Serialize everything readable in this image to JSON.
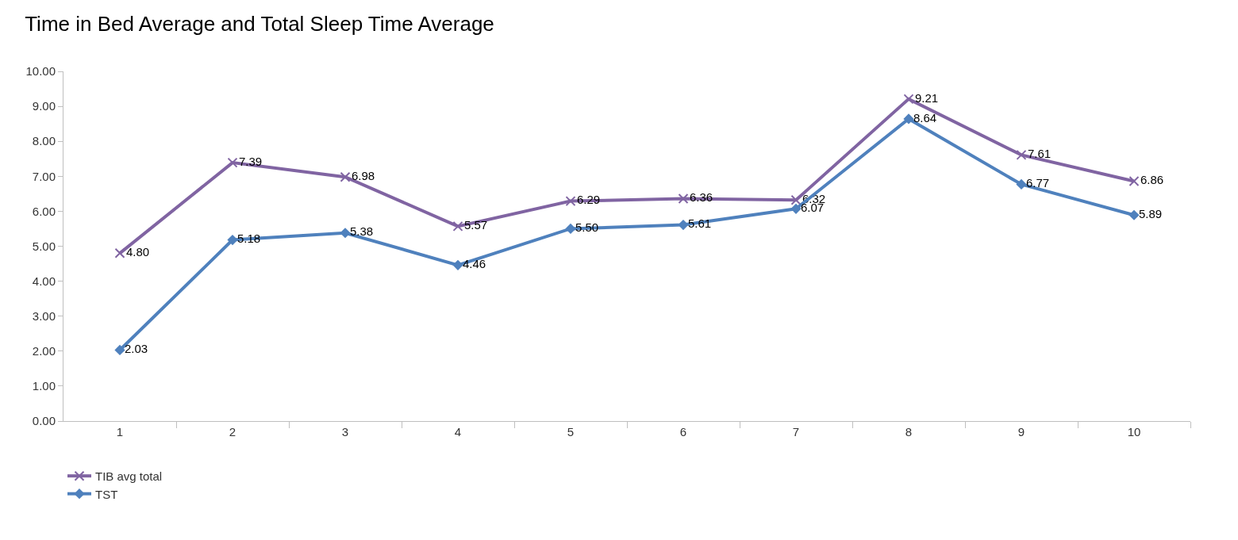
{
  "chart_data": {
    "type": "line",
    "title": "Time in Bed Average and Total Sleep Time Average",
    "categories": [
      "1",
      "2",
      "3",
      "4",
      "5",
      "6",
      "7",
      "8",
      "9",
      "10"
    ],
    "series": [
      {
        "name": "TIB avg total",
        "color": "#8064a2",
        "marker": "cross",
        "values": [
          4.8,
          7.39,
          6.98,
          5.57,
          6.29,
          6.36,
          6.32,
          9.21,
          7.61,
          6.86
        ],
        "value_labels": [
          "4.80",
          "7.39",
          "6.98",
          "5.57",
          "6.29",
          "6.36",
          "6.32",
          "9.21",
          "7.61",
          "6.86"
        ]
      },
      {
        "name": "TST",
        "color": "#4f81bd",
        "marker": "diamond",
        "values": [
          2.03,
          5.18,
          5.38,
          4.46,
          5.5,
          5.61,
          6.07,
          8.64,
          6.77,
          5.89
        ],
        "value_labels": [
          "2.03",
          "5.18",
          "5.38",
          "4.46",
          "5.50",
          "5.61",
          "6.07",
          "8.64",
          "6.77",
          "5.89"
        ]
      }
    ],
    "ylim": [
      0,
      10
    ],
    "yticks": [
      {
        "value": 0,
        "label": "0.00"
      },
      {
        "value": 1,
        "label": "1.00"
      },
      {
        "value": 2,
        "label": "2.00"
      },
      {
        "value": 3,
        "label": "3.00"
      },
      {
        "value": 4,
        "label": "4.00"
      },
      {
        "value": 5,
        "label": "5.00"
      },
      {
        "value": 6,
        "label": "6.00"
      },
      {
        "value": 7,
        "label": "7.00"
      },
      {
        "value": 8,
        "label": "8.00"
      },
      {
        "value": 9,
        "label": "9.00"
      },
      {
        "value": 10,
        "label": "10.00"
      }
    ],
    "grid": false,
    "legend": "bottom left",
    "line_style": "solid"
  }
}
